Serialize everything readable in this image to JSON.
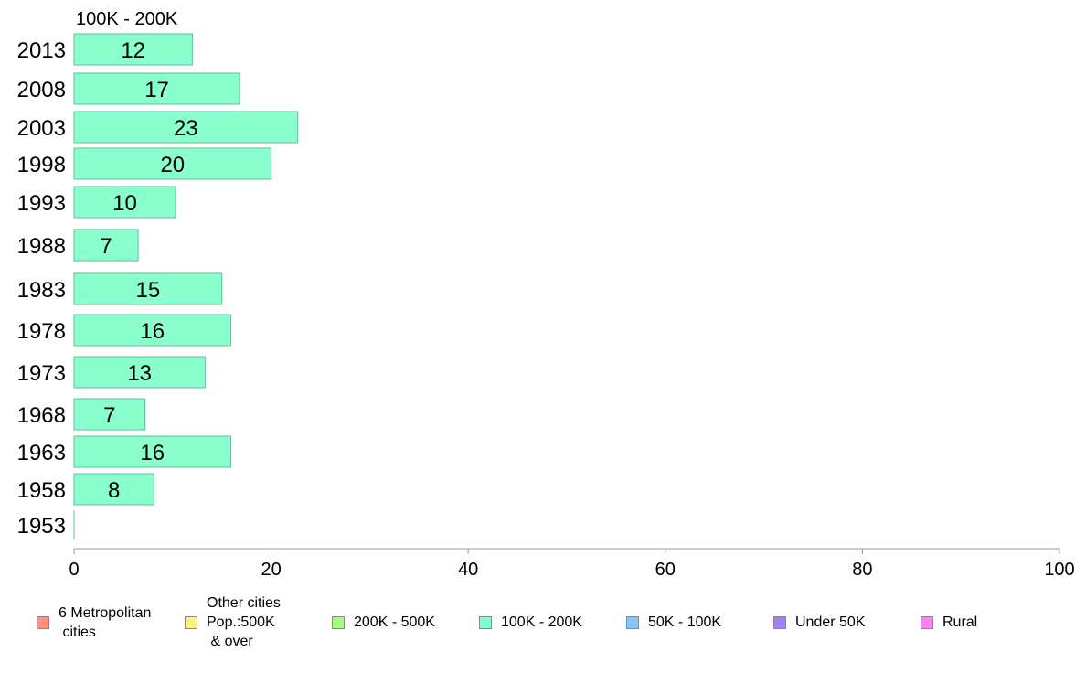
{
  "chart_data": {
    "type": "bar",
    "orientation": "horizontal",
    "title": "100K - 200K",
    "categories": [
      "2013",
      "2008",
      "2003",
      "1998",
      "1993",
      "1988",
      "1983",
      "1978",
      "1973",
      "1968",
      "1963",
      "1958",
      "1953"
    ],
    "series": [
      {
        "name": "100K - 200K",
        "color": "#88ffcc",
        "values": [
          12,
          17,
          23,
          20,
          10,
          7,
          15,
          16,
          13,
          7,
          16,
          8,
          0
        ],
        "plotted": [
          12.0,
          16.8,
          22.7,
          20.0,
          10.3,
          6.5,
          15.0,
          15.9,
          13.3,
          7.2,
          15.9,
          8.1,
          0
        ]
      }
    ],
    "xlim": [
      0,
      100
    ],
    "xticks": [
      0,
      20,
      40,
      60,
      80,
      100
    ],
    "grid": false,
    "legend_position": "bottom"
  },
  "legend": [
    {
      "label": "6 Metropolitan\n cities",
      "color": "#ff8f80"
    },
    {
      "label": "Other cities\nPop.:500K\n & over",
      "color": "#fff080"
    },
    {
      "label": "200K - 500K",
      "color": "#a0ff80"
    },
    {
      "label": "100K - 200K",
      "color": "#80ffcc"
    },
    {
      "label": "50K - 100K",
      "color": "#80c8ff"
    },
    {
      "label": "Under 50K",
      "color": "#a080ff"
    },
    {
      "label": "Rural",
      "color": "#ff80f0"
    }
  ]
}
